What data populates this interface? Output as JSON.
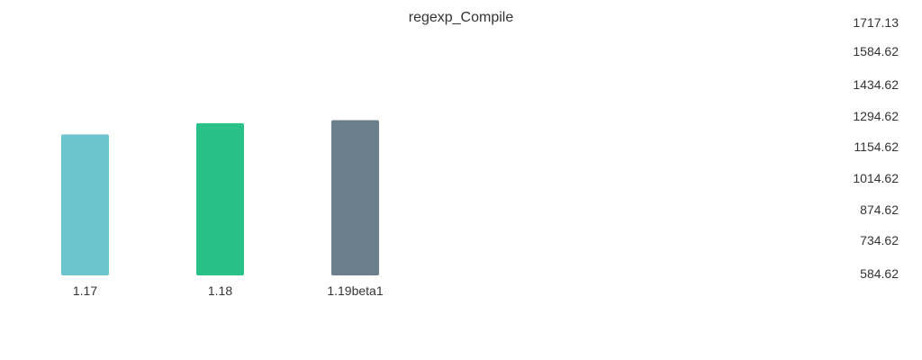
{
  "chart_data": {
    "type": "bar",
    "title": "regexp_Compile",
    "xlabel": "",
    "ylabel": "",
    "categories": [
      "1.17",
      "1.18",
      "1.19beta1"
    ],
    "values": [
      1216,
      1266,
      1280
    ],
    "colors": [
      "#6cc4cc",
      "#2ac189",
      "#6c808b"
    ],
    "ylim": [
      584.62,
      1717.13
    ],
    "yticks": [
      "1717.13",
      "1584.62",
      "1434.62",
      "1294.62",
      "1154.62",
      "1014.62",
      "874.62",
      "734.62",
      "584.62"
    ],
    "y_axis_position": "right",
    "grid": false,
    "legend": "none"
  }
}
